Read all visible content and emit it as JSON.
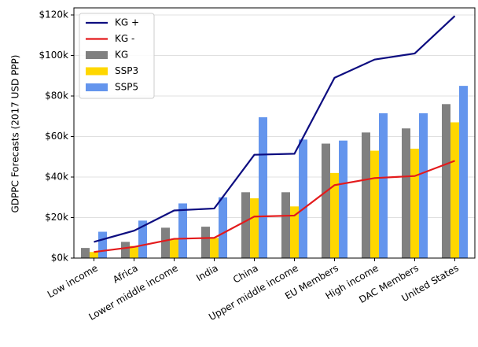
{
  "chart_data": {
    "type": "bar",
    "y_label": "GDPPC Forecasts (2017 USD PPP)",
    "categories": [
      "Low income",
      "Africa",
      "Lower middle income",
      "India",
      "China",
      "Upper middle income",
      "EU Members",
      "High income",
      "DAC Members",
      "United States"
    ],
    "series": [
      {
        "name": "KG +",
        "kind": "line",
        "color": "#0d0d80",
        "values": [
          8000,
          13500,
          23500,
          24500,
          51000,
          51500,
          89000,
          98000,
          101000,
          119500
        ]
      },
      {
        "name": "KG -",
        "kind": "line",
        "color": "#e31a1c",
        "values": [
          3000,
          5500,
          9500,
          10000,
          20500,
          21000,
          36000,
          39500,
          40500,
          48000
        ]
      },
      {
        "name": "KG",
        "kind": "bar",
        "color": "#808080",
        "values": [
          5000,
          8000,
          15000,
          15500,
          32500,
          32500,
          56500,
          62000,
          64000,
          76000
        ]
      },
      {
        "name": "SSP3",
        "kind": "bar",
        "color": "#ffd700",
        "values": [
          3000,
          6000,
          9500,
          10000,
          29500,
          25500,
          42000,
          53000,
          54000,
          67000
        ]
      },
      {
        "name": "SSP5",
        "kind": "bar",
        "color": "#6495ed",
        "values": [
          13000,
          18500,
          27000,
          30000,
          69500,
          58500,
          58000,
          71500,
          71500,
          85000
        ]
      }
    ],
    "ylim": [
      0,
      123500
    ],
    "yticks": [
      {
        "value": 0,
        "label": "$0k"
      },
      {
        "value": 20000,
        "label": "$20k"
      },
      {
        "value": 40000,
        "label": "$40k"
      },
      {
        "value": 60000,
        "label": "$60k"
      },
      {
        "value": 80000,
        "label": "$80k"
      },
      {
        "value": 100000,
        "label": "$100k"
      },
      {
        "value": 120000,
        "label": "$120k"
      }
    ],
    "grid": true,
    "legend": "upper left"
  }
}
